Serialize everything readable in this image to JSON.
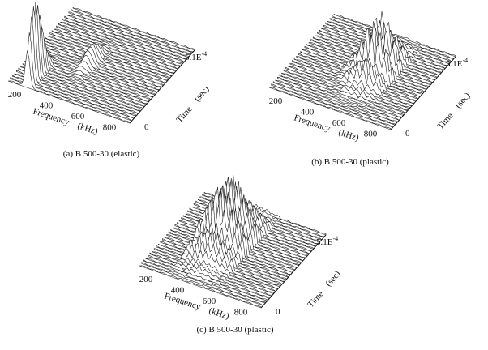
{
  "panels": [
    {
      "caption": "(a) B 500-30 (elastic)",
      "frequency_ticks": [
        "200",
        "400",
        "600",
        "800"
      ],
      "frequency_label": "Frequency",
      "frequency_unit": "(kHz)",
      "time_label": "Time",
      "time_unit": "(sec)",
      "time_start": "0",
      "time_end_mantissa": "5.1E",
      "time_end_exponent": "-4"
    },
    {
      "caption": "(b) B 500-30 (plastic)",
      "frequency_ticks": [
        "200",
        "400",
        "600",
        "800"
      ],
      "frequency_label": "Frequency",
      "frequency_unit": "(kHz)",
      "time_label": "Time",
      "time_unit": "(sec)",
      "time_start": "0",
      "time_end_mantissa": "5.1E",
      "time_end_exponent": "-4"
    },
    {
      "caption": "(c) B 500-30 (plastic)",
      "frequency_ticks": [
        "200",
        "400",
        "600",
        "800"
      ],
      "frequency_label": "Frequency",
      "frequency_unit": "(kHz)",
      "time_label": "Time",
      "time_unit": "(sec)",
      "time_start": "0",
      "time_end_mantissa": "5.1E",
      "time_end_exponent": "-4"
    }
  ]
}
